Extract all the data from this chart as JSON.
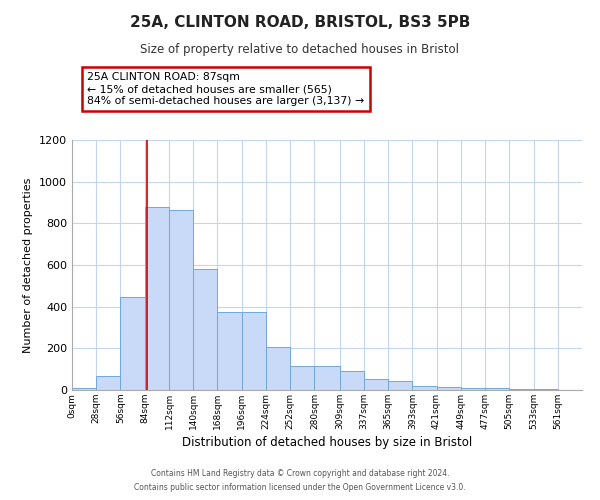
{
  "title": "25A, CLINTON ROAD, BRISTOL, BS3 5PB",
  "subtitle": "Size of property relative to detached houses in Bristol",
  "xlabel": "Distribution of detached houses by size in Bristol",
  "ylabel": "Number of detached properties",
  "bar_values": [
    10,
    65,
    445,
    880,
    865,
    580,
    375,
    375,
    205,
    115,
    115,
    90,
    55,
    45,
    20,
    15,
    12,
    8,
    5,
    3,
    2
  ],
  "bin_edges": [
    0,
    28,
    56,
    84,
    112,
    140,
    168,
    196,
    224,
    252,
    280,
    309,
    337,
    365,
    393,
    421,
    449,
    477,
    505,
    533,
    561,
    589
  ],
  "x_tick_labels": [
    "0sqm",
    "28sqm",
    "56sqm",
    "84sqm",
    "112sqm",
    "140sqm",
    "168sqm",
    "196sqm",
    "224sqm",
    "252sqm",
    "280sqm",
    "309sqm",
    "337sqm",
    "365sqm",
    "393sqm",
    "421sqm",
    "449sqm",
    "477sqm",
    "505sqm",
    "533sqm",
    "561sqm"
  ],
  "bar_color": "#c9daf8",
  "bar_edge_color": "#6fa8dc",
  "ylim": [
    0,
    1200
  ],
  "yticks": [
    0,
    200,
    400,
    600,
    800,
    1000,
    1200
  ],
  "property_label": "25A CLINTON ROAD: 87sqm",
  "annotation_line1": "← 15% of detached houses are smaller (565)",
  "annotation_line2": "84% of semi-detached houses are larger (3,137) →",
  "annotation_box_color": "#cc0000",
  "vline_x": 87,
  "footer1": "Contains HM Land Registry data © Crown copyright and database right 2024.",
  "footer2": "Contains public sector information licensed under the Open Government Licence v3.0.",
  "bg_color": "#ffffff",
  "grid_color": "#c5d5ee"
}
